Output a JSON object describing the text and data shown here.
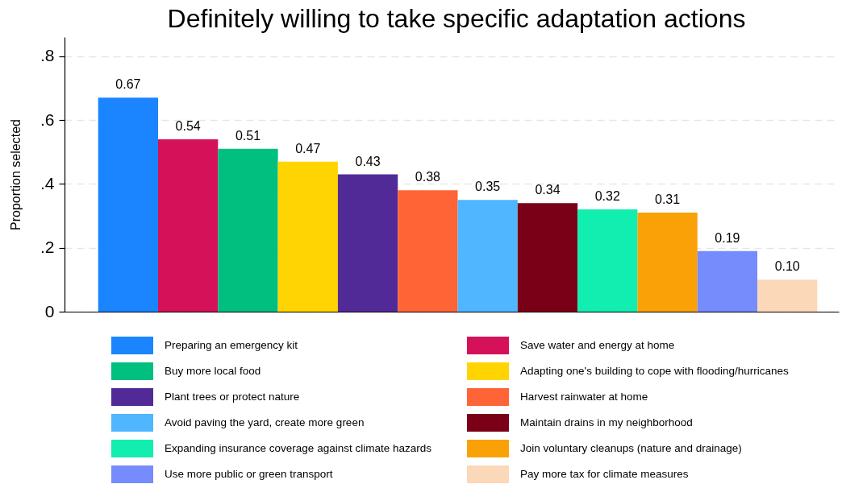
{
  "chart_data": {
    "type": "bar",
    "title": "Definitely willing to take specific adaptation actions",
    "ylabel": "Proportion selected",
    "categories": [
      null
    ],
    "series": [
      {
        "name": "Preparing an emergency kit",
        "color": "#1a85ff",
        "values": [
          0.67
        ],
        "value_labels": [
          "0.67"
        ]
      },
      {
        "name": "Save water and energy at home",
        "color": "#d41159",
        "values": [
          0.54
        ],
        "value_labels": [
          "0.54"
        ]
      },
      {
        "name": "Buy more local food",
        "color": "#00bf7f",
        "values": [
          0.51
        ],
        "value_labels": [
          "0.51"
        ]
      },
      {
        "name": "Adapting one's building to cope with flooding/hurricanes",
        "color": "#ffd400",
        "values": [
          0.47
        ],
        "value_labels": [
          "0.47"
        ]
      },
      {
        "name": "Plant trees or protect nature",
        "color": "#512a98",
        "values": [
          0.43
        ],
        "value_labels": [
          "0.43"
        ]
      },
      {
        "name": "Harvest rainwater at home",
        "color": "#ff6437",
        "values": [
          0.38
        ],
        "value_labels": [
          "0.38"
        ]
      },
      {
        "name": "Avoid paving the yard, create more green",
        "color": "#4fb6ff",
        "values": [
          0.35
        ],
        "value_labels": [
          "0.35"
        ]
      },
      {
        "name": "Maintain drains in my neighborhood",
        "color": "#7a0017",
        "values": [
          0.34
        ],
        "value_labels": [
          "0.34"
        ]
      },
      {
        "name": "Expanding insurance coverage against climate hazards",
        "color": "#12eeb0",
        "values": [
          0.32
        ],
        "value_labels": [
          "0.32"
        ]
      },
      {
        "name": "Join voluntary cleanups (nature and drainage)",
        "color": "#f9a106",
        "values": [
          0.31
        ],
        "value_labels": [
          "0.31"
        ]
      },
      {
        "name": "Use more public or green transport",
        "color": "#768bfc",
        "values": [
          0.19
        ],
        "value_labels": [
          "0.19"
        ]
      },
      {
        "name": "Pay more tax for climate measures",
        "color": "#fbd8b8",
        "values": [
          0.1
        ],
        "value_labels": [
          "0.10"
        ]
      }
    ],
    "ylim": [
      0,
      0.86
    ],
    "yticks": [
      0,
      {
        "value": 0.2,
        "label": ".2"
      },
      {
        "value": 0.4,
        "label": ".4"
      },
      {
        "value": 0.6,
        "label": ".6"
      },
      {
        "value": 0.8,
        "label": ".8"
      }
    ],
    "grid": "y",
    "legend": "bottom",
    "tick_labels": "y"
  }
}
